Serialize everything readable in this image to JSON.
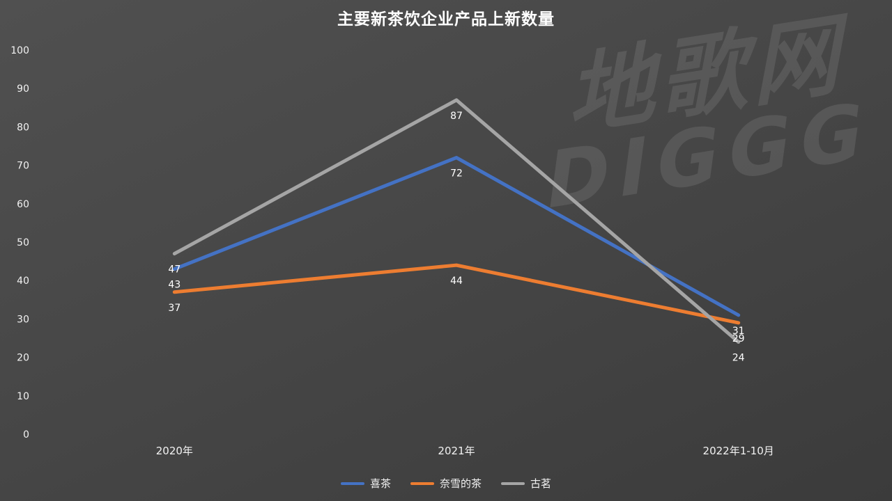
{
  "watermark": {
    "line1": "地歌网",
    "line2": "DIGGG"
  },
  "colors": {
    "background": "#464646",
    "text": "#FFFFFF",
    "series_blue": "#4472C4",
    "series_orange": "#ED7D31",
    "series_gray": "#A5A5A5"
  },
  "chart_data": {
    "type": "line",
    "title": "主要新茶饮企业产品上新数量",
    "categories": [
      "2020年",
      "2021年",
      "2022年1-10月"
    ],
    "series": [
      {
        "name": "喜茶",
        "color": "#4472C4",
        "values": [
          43,
          72,
          31
        ]
      },
      {
        "name": "奈雪的茶",
        "color": "#ED7D31",
        "values": [
          37,
          44,
          29
        ]
      },
      {
        "name": "古茗",
        "color": "#A5A5A5",
        "values": [
          47,
          87,
          24
        ]
      }
    ],
    "xlabel": "",
    "ylabel": "",
    "ylim": [
      0,
      100
    ],
    "yticks": [
      0,
      10,
      20,
      30,
      40,
      50,
      60,
      70,
      80,
      90,
      100
    ],
    "grid": false,
    "data_labels": true,
    "legend_position": "bottom"
  }
}
